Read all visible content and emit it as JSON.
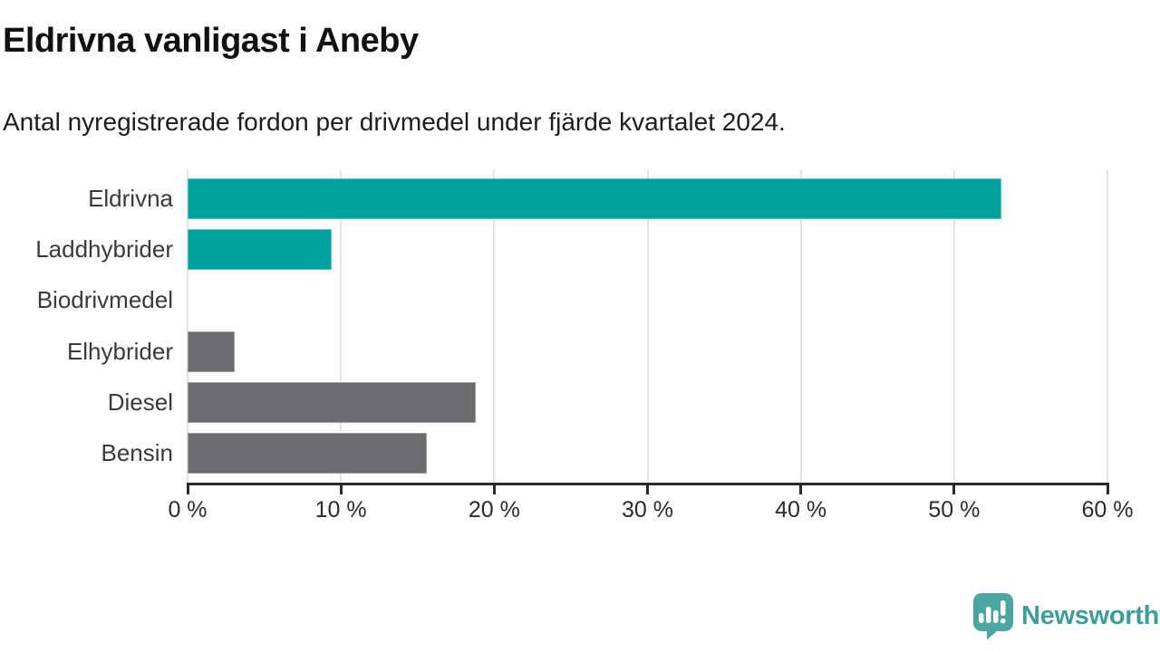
{
  "header": {
    "title": "Eldrivna vanligast i Aneby",
    "subtitle": "Antal nyregistrerade fordon per drivmedel under fjärde kvartalet 2024."
  },
  "chart_data": {
    "type": "bar",
    "orientation": "horizontal",
    "title": "Eldrivna vanligast i Aneby",
    "subtitle": "Antal nyregistrerade fordon per drivmedel under fjärde kvartalet 2024.",
    "categories": [
      "Eldrivna",
      "Laddhybrider",
      "Biodrivmedel",
      "Elhybrider",
      "Diesel",
      "Bensin"
    ],
    "values": [
      53.1,
      9.4,
      0,
      3.1,
      18.8,
      15.6
    ],
    "unit": "%",
    "bar_colors": [
      "#00a39b",
      "#00a39b",
      "#6b6b70",
      "#6b6b70",
      "#6b6b70",
      "#6b6b70"
    ],
    "xlim": [
      0,
      60
    ],
    "x_tick_labels": [
      "0 %",
      "10 %",
      "20 %",
      "30 %",
      "40 %",
      "50 %",
      "60 %"
    ],
    "grid": true,
    "legend": "none"
  },
  "colors": {
    "highlight": "#00a39b",
    "neutral": "#6b6b70",
    "grid": "#e4e4e4",
    "axis": "#2b2b2b",
    "brand_teal": "#3f9c98",
    "brand_bubble": "#4ba6a2"
  },
  "footer": {
    "logo_text": "Newsworthy",
    "logo_icon": "newsworthy-speech-bubble-chart-icon"
  }
}
